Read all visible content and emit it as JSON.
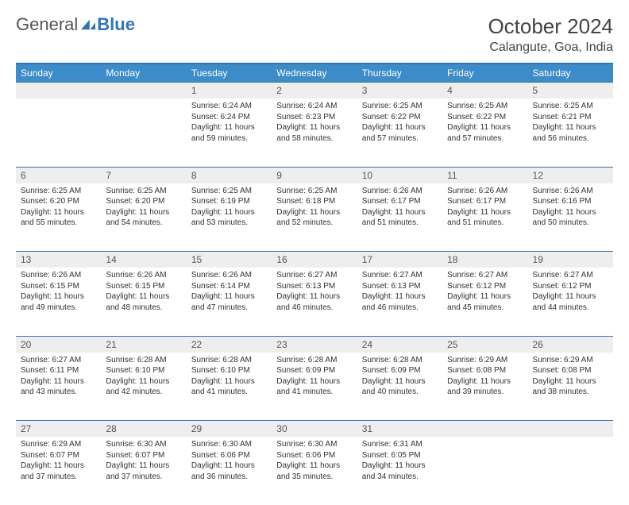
{
  "brand": {
    "part1": "General",
    "part2": "Blue"
  },
  "title": "October 2024",
  "location": "Calangute, Goa, India",
  "colors": {
    "header_bg": "#3b8cc8",
    "header_border": "#2e75b6",
    "daynum_bg": "#eeeeee",
    "text": "#333333",
    "page_bg": "#ffffff"
  },
  "dayHeaders": [
    "Sunday",
    "Monday",
    "Tuesday",
    "Wednesday",
    "Thursday",
    "Friday",
    "Saturday"
  ],
  "weeks": [
    [
      {
        "n": "",
        "sr": "",
        "ss": "",
        "dl": ""
      },
      {
        "n": "",
        "sr": "",
        "ss": "",
        "dl": ""
      },
      {
        "n": "1",
        "sr": "Sunrise: 6:24 AM",
        "ss": "Sunset: 6:24 PM",
        "dl": "Daylight: 11 hours and 59 minutes."
      },
      {
        "n": "2",
        "sr": "Sunrise: 6:24 AM",
        "ss": "Sunset: 6:23 PM",
        "dl": "Daylight: 11 hours and 58 minutes."
      },
      {
        "n": "3",
        "sr": "Sunrise: 6:25 AM",
        "ss": "Sunset: 6:22 PM",
        "dl": "Daylight: 11 hours and 57 minutes."
      },
      {
        "n": "4",
        "sr": "Sunrise: 6:25 AM",
        "ss": "Sunset: 6:22 PM",
        "dl": "Daylight: 11 hours and 57 minutes."
      },
      {
        "n": "5",
        "sr": "Sunrise: 6:25 AM",
        "ss": "Sunset: 6:21 PM",
        "dl": "Daylight: 11 hours and 56 minutes."
      }
    ],
    [
      {
        "n": "6",
        "sr": "Sunrise: 6:25 AM",
        "ss": "Sunset: 6:20 PM",
        "dl": "Daylight: 11 hours and 55 minutes."
      },
      {
        "n": "7",
        "sr": "Sunrise: 6:25 AM",
        "ss": "Sunset: 6:20 PM",
        "dl": "Daylight: 11 hours and 54 minutes."
      },
      {
        "n": "8",
        "sr": "Sunrise: 6:25 AM",
        "ss": "Sunset: 6:19 PM",
        "dl": "Daylight: 11 hours and 53 minutes."
      },
      {
        "n": "9",
        "sr": "Sunrise: 6:25 AM",
        "ss": "Sunset: 6:18 PM",
        "dl": "Daylight: 11 hours and 52 minutes."
      },
      {
        "n": "10",
        "sr": "Sunrise: 6:26 AM",
        "ss": "Sunset: 6:17 PM",
        "dl": "Daylight: 11 hours and 51 minutes."
      },
      {
        "n": "11",
        "sr": "Sunrise: 6:26 AM",
        "ss": "Sunset: 6:17 PM",
        "dl": "Daylight: 11 hours and 51 minutes."
      },
      {
        "n": "12",
        "sr": "Sunrise: 6:26 AM",
        "ss": "Sunset: 6:16 PM",
        "dl": "Daylight: 11 hours and 50 minutes."
      }
    ],
    [
      {
        "n": "13",
        "sr": "Sunrise: 6:26 AM",
        "ss": "Sunset: 6:15 PM",
        "dl": "Daylight: 11 hours and 49 minutes."
      },
      {
        "n": "14",
        "sr": "Sunrise: 6:26 AM",
        "ss": "Sunset: 6:15 PM",
        "dl": "Daylight: 11 hours and 48 minutes."
      },
      {
        "n": "15",
        "sr": "Sunrise: 6:26 AM",
        "ss": "Sunset: 6:14 PM",
        "dl": "Daylight: 11 hours and 47 minutes."
      },
      {
        "n": "16",
        "sr": "Sunrise: 6:27 AM",
        "ss": "Sunset: 6:13 PM",
        "dl": "Daylight: 11 hours and 46 minutes."
      },
      {
        "n": "17",
        "sr": "Sunrise: 6:27 AM",
        "ss": "Sunset: 6:13 PM",
        "dl": "Daylight: 11 hours and 46 minutes."
      },
      {
        "n": "18",
        "sr": "Sunrise: 6:27 AM",
        "ss": "Sunset: 6:12 PM",
        "dl": "Daylight: 11 hours and 45 minutes."
      },
      {
        "n": "19",
        "sr": "Sunrise: 6:27 AM",
        "ss": "Sunset: 6:12 PM",
        "dl": "Daylight: 11 hours and 44 minutes."
      }
    ],
    [
      {
        "n": "20",
        "sr": "Sunrise: 6:27 AM",
        "ss": "Sunset: 6:11 PM",
        "dl": "Daylight: 11 hours and 43 minutes."
      },
      {
        "n": "21",
        "sr": "Sunrise: 6:28 AM",
        "ss": "Sunset: 6:10 PM",
        "dl": "Daylight: 11 hours and 42 minutes."
      },
      {
        "n": "22",
        "sr": "Sunrise: 6:28 AM",
        "ss": "Sunset: 6:10 PM",
        "dl": "Daylight: 11 hours and 41 minutes."
      },
      {
        "n": "23",
        "sr": "Sunrise: 6:28 AM",
        "ss": "Sunset: 6:09 PM",
        "dl": "Daylight: 11 hours and 41 minutes."
      },
      {
        "n": "24",
        "sr": "Sunrise: 6:28 AM",
        "ss": "Sunset: 6:09 PM",
        "dl": "Daylight: 11 hours and 40 minutes."
      },
      {
        "n": "25",
        "sr": "Sunrise: 6:29 AM",
        "ss": "Sunset: 6:08 PM",
        "dl": "Daylight: 11 hours and 39 minutes."
      },
      {
        "n": "26",
        "sr": "Sunrise: 6:29 AM",
        "ss": "Sunset: 6:08 PM",
        "dl": "Daylight: 11 hours and 38 minutes."
      }
    ],
    [
      {
        "n": "27",
        "sr": "Sunrise: 6:29 AM",
        "ss": "Sunset: 6:07 PM",
        "dl": "Daylight: 11 hours and 37 minutes."
      },
      {
        "n": "28",
        "sr": "Sunrise: 6:30 AM",
        "ss": "Sunset: 6:07 PM",
        "dl": "Daylight: 11 hours and 37 minutes."
      },
      {
        "n": "29",
        "sr": "Sunrise: 6:30 AM",
        "ss": "Sunset: 6:06 PM",
        "dl": "Daylight: 11 hours and 36 minutes."
      },
      {
        "n": "30",
        "sr": "Sunrise: 6:30 AM",
        "ss": "Sunset: 6:06 PM",
        "dl": "Daylight: 11 hours and 35 minutes."
      },
      {
        "n": "31",
        "sr": "Sunrise: 6:31 AM",
        "ss": "Sunset: 6:05 PM",
        "dl": "Daylight: 11 hours and 34 minutes."
      },
      {
        "n": "",
        "sr": "",
        "ss": "",
        "dl": ""
      },
      {
        "n": "",
        "sr": "",
        "ss": "",
        "dl": ""
      }
    ]
  ]
}
